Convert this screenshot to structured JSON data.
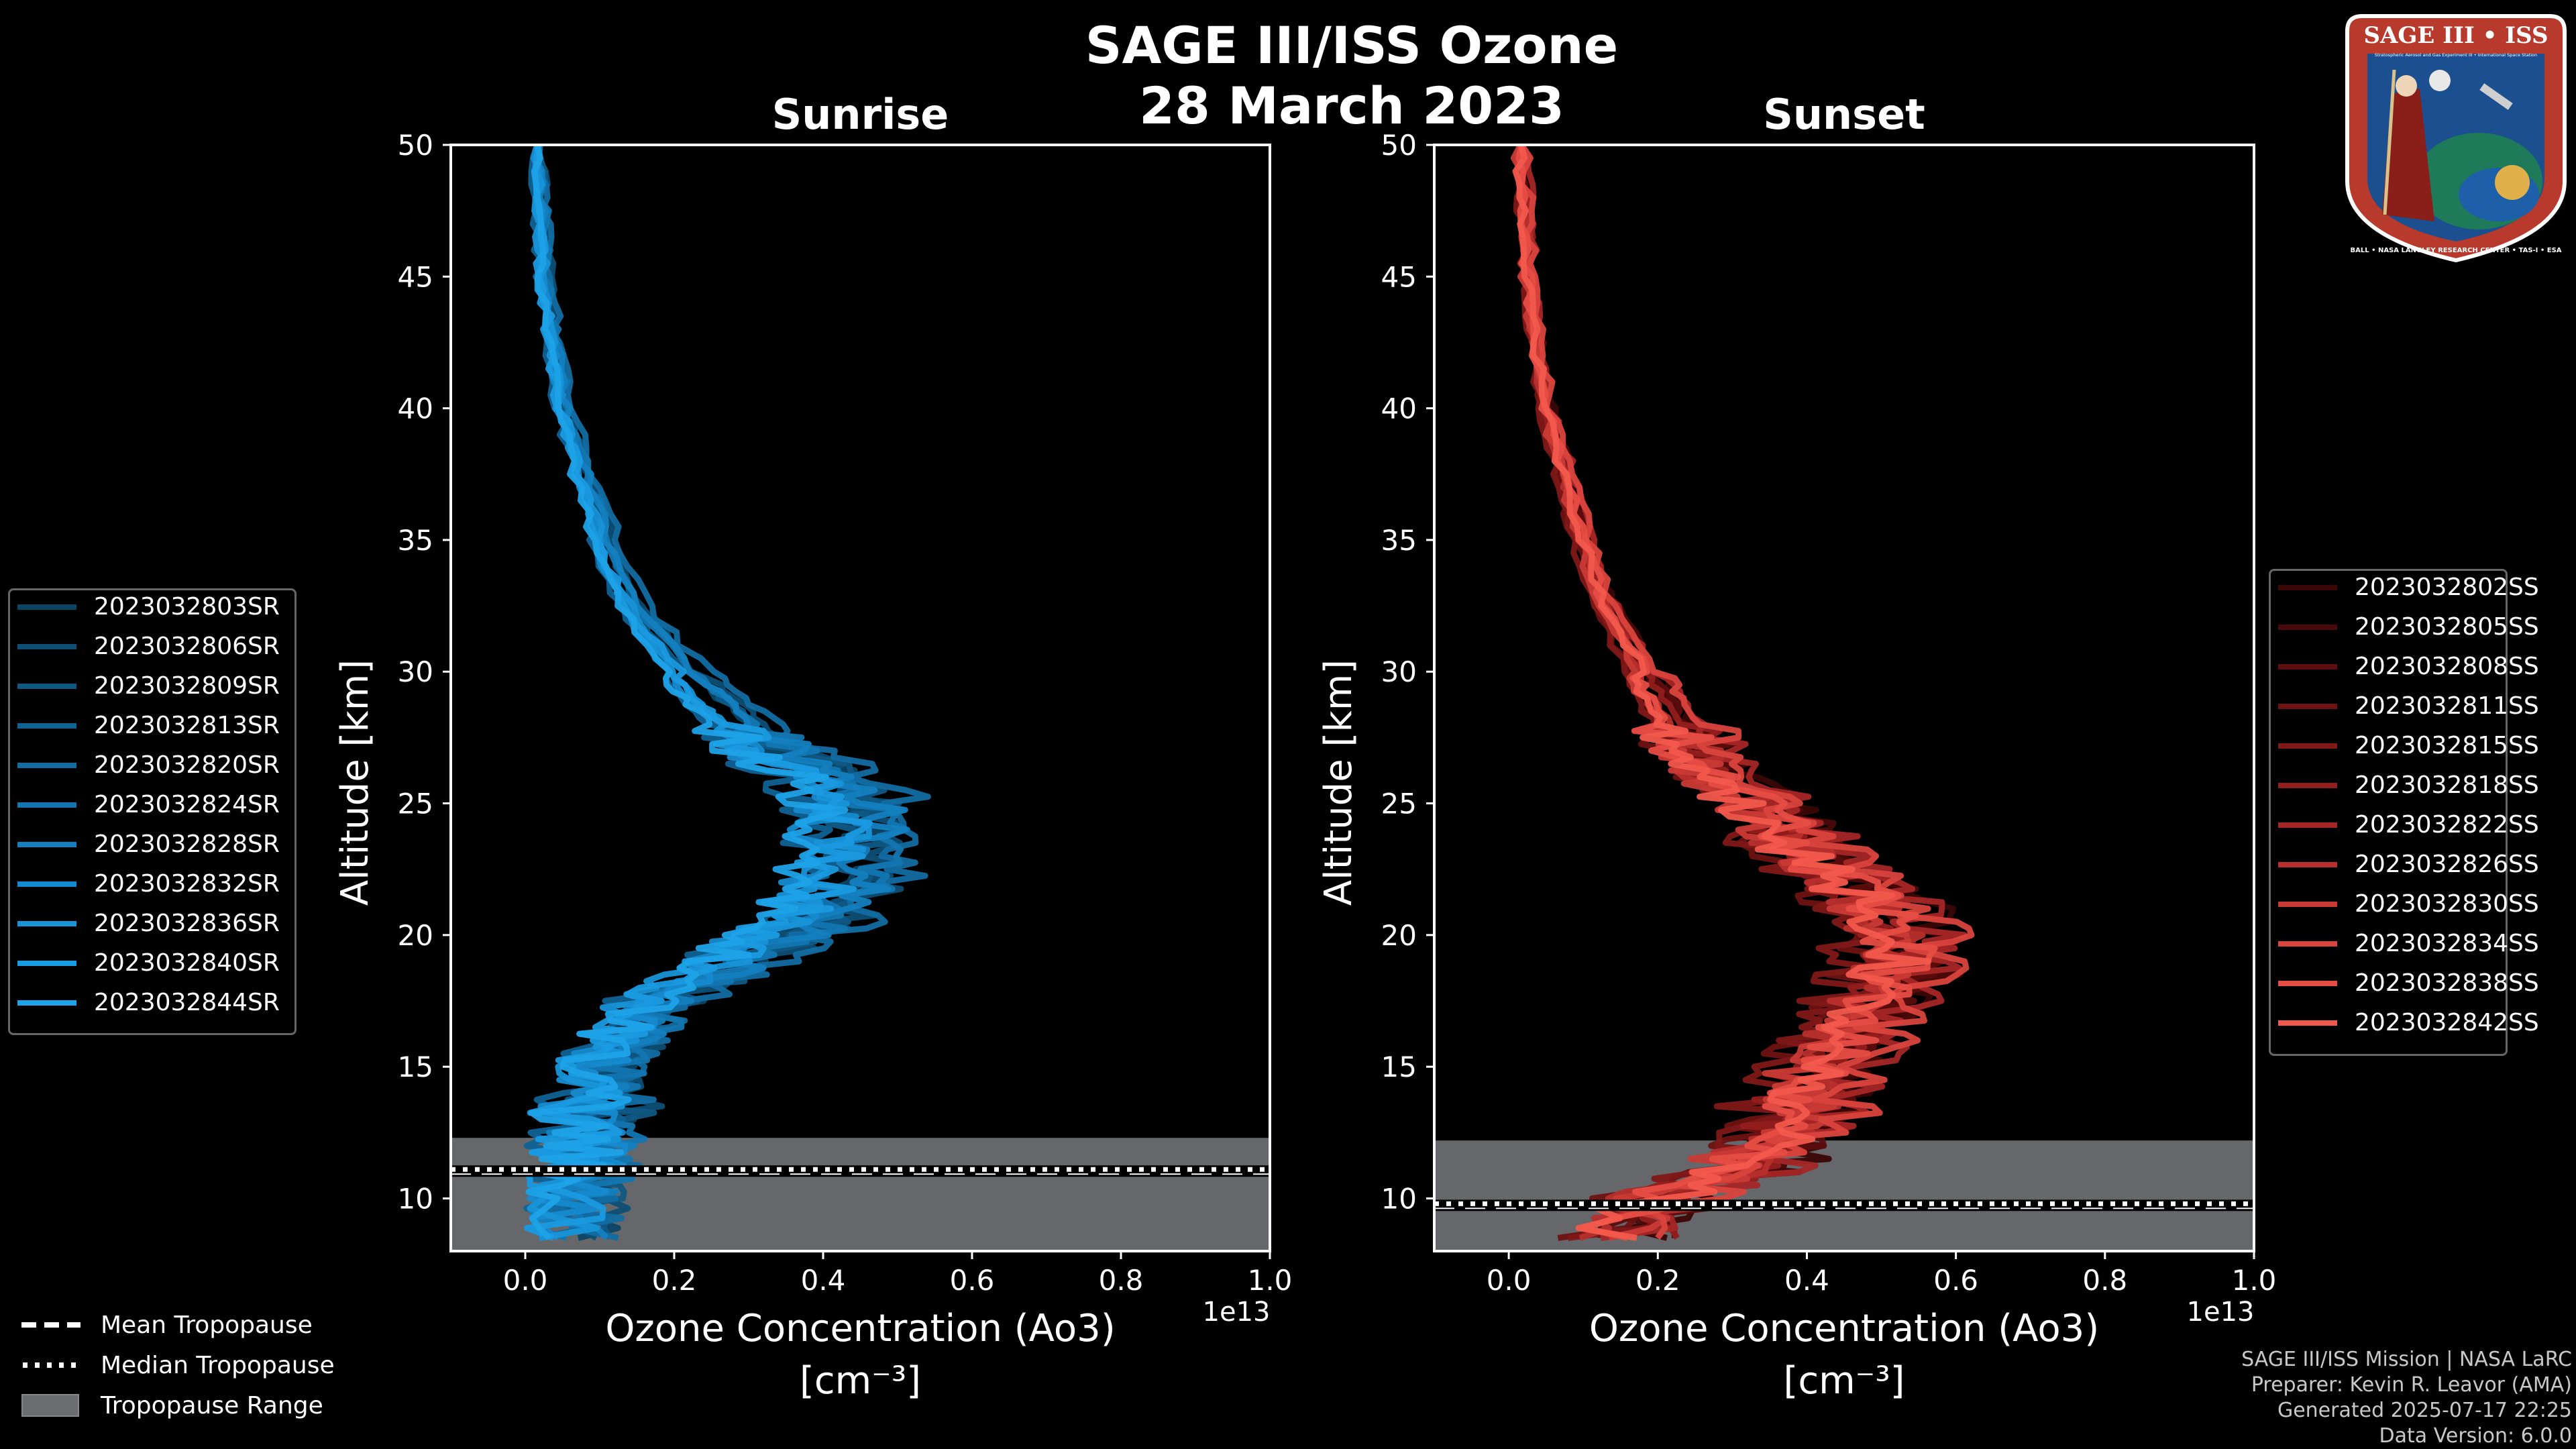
{
  "title": "SAGE III/ISS Ozone",
  "subtitle": "28 March 2023",
  "chart_data": [
    {
      "type": "line",
      "title": "Sunrise",
      "xlabel": "Ozone Concentration (Ao3)",
      "xlabel_units": "[cm⁻³]",
      "x_offset_label": "1e13",
      "ylabel": "Altitude [km]",
      "xlim": [
        -0.1,
        1.0
      ],
      "ylim": [
        8,
        50
      ],
      "xticks": [
        0.0,
        0.2,
        0.4,
        0.6,
        0.8,
        1.0
      ],
      "xtick_labels": [
        "0.0",
        "0.2",
        "0.4",
        "0.6",
        "0.8",
        "1.0"
      ],
      "yticks": [
        10,
        15,
        20,
        25,
        30,
        35,
        40,
        45,
        50
      ],
      "tropopause": {
        "mean": 11.0,
        "median": 11.1,
        "range": [
          8.0,
          12.3
        ]
      },
      "series_color": "#1f9be0",
      "series": [
        {
          "name": "2023032803SR",
          "color": "#0c4466"
        },
        {
          "name": "2023032806SR",
          "color": "#0d4e75"
        },
        {
          "name": "2023032809SR",
          "color": "#0f5884"
        },
        {
          "name": "2023032813SR",
          "color": "#106293"
        },
        {
          "name": "2023032820SR",
          "color": "#126ca2"
        },
        {
          "name": "2023032824SR",
          "color": "#1376b1"
        },
        {
          "name": "2023032828SR",
          "color": "#1480c0"
        },
        {
          "name": "2023032832SR",
          "color": "#168acf"
        },
        {
          "name": "2023032836SR",
          "color": "#1894d8"
        },
        {
          "name": "2023032840SR",
          "color": "#1a9ae0"
        },
        {
          "name": "2023032844SR",
          "color": "#1ea2e8"
        }
      ],
      "mean_profile": {
        "altitude": [
          8.5,
          10,
          11,
          12,
          13,
          14,
          15,
          16,
          17,
          18,
          19,
          20,
          21,
          22,
          23,
          24,
          25,
          26,
          27,
          28,
          29,
          30,
          31,
          32,
          33,
          34,
          35,
          36,
          37,
          38,
          39,
          40,
          41,
          42,
          43,
          44,
          45,
          46,
          47,
          48,
          49,
          50
        ],
        "ozone": [
          0.06,
          0.07,
          0.08,
          0.09,
          0.1,
          0.11,
          0.11,
          0.14,
          0.17,
          0.22,
          0.29,
          0.36,
          0.41,
          0.44,
          0.45,
          0.46,
          0.45,
          0.42,
          0.35,
          0.3,
          0.26,
          0.22,
          0.19,
          0.16,
          0.14,
          0.12,
          0.11,
          0.1,
          0.085,
          0.075,
          0.065,
          0.055,
          0.048,
          0.042,
          0.037,
          0.033,
          0.029,
          0.026,
          0.024,
          0.022,
          0.02,
          0.018
        ]
      }
    },
    {
      "type": "line",
      "title": "Sunset",
      "xlabel": "Ozone Concentration (Ao3)",
      "xlabel_units": "[cm⁻³]",
      "x_offset_label": "1e13",
      "ylabel": "Altitude [km]",
      "xlim": [
        -0.1,
        1.0
      ],
      "ylim": [
        8,
        50
      ],
      "xticks": [
        0.0,
        0.2,
        0.4,
        0.6,
        0.8,
        1.0
      ],
      "xtick_labels": [
        "0.0",
        "0.2",
        "0.4",
        "0.6",
        "0.8",
        "1.0"
      ],
      "yticks": [
        10,
        15,
        20,
        25,
        30,
        35,
        40,
        45,
        50
      ],
      "tropopause": {
        "mean": 9.7,
        "median": 9.8,
        "range": [
          8.0,
          12.2
        ]
      },
      "series_color": "#e8544a",
      "series": [
        {
          "name": "2023032802SS",
          "color": "#3a0606"
        },
        {
          "name": "2023032805SS",
          "color": "#4a0909"
        },
        {
          "name": "2023032808SS",
          "color": "#5c0d0d"
        },
        {
          "name": "2023032811SS",
          "color": "#6e1212"
        },
        {
          "name": "2023032815SS",
          "color": "#801818"
        },
        {
          "name": "2023032818SS",
          "color": "#931e1e"
        },
        {
          "name": "2023032822SS",
          "color": "#a52626"
        },
        {
          "name": "2023032826SS",
          "color": "#b72f2d"
        },
        {
          "name": "2023032830SS",
          "color": "#c93a35"
        },
        {
          "name": "2023032834SS",
          "color": "#d9443d"
        },
        {
          "name": "2023032838SS",
          "color": "#e64d44"
        },
        {
          "name": "2023032842SS",
          "color": "#f2584c"
        }
      ],
      "mean_profile": {
        "altitude": [
          8.5,
          10,
          11,
          12,
          13,
          14,
          15,
          16,
          17,
          18,
          19,
          20,
          21,
          22,
          23,
          24,
          25,
          26,
          27,
          28,
          29,
          30,
          31,
          32,
          33,
          34,
          35,
          36,
          37,
          38,
          39,
          40,
          41,
          42,
          43,
          44,
          45,
          46,
          47,
          48,
          49,
          50
        ],
        "ozone": [
          0.15,
          0.2,
          0.3,
          0.35,
          0.38,
          0.4,
          0.42,
          0.45,
          0.47,
          0.5,
          0.52,
          0.52,
          0.5,
          0.45,
          0.4,
          0.37,
          0.33,
          0.28,
          0.25,
          0.22,
          0.2,
          0.18,
          0.16,
          0.14,
          0.12,
          0.11,
          0.1,
          0.09,
          0.08,
          0.07,
          0.06,
          0.05,
          0.045,
          0.04,
          0.035,
          0.03,
          0.027,
          0.024,
          0.022,
          0.02,
          0.018,
          0.016
        ]
      }
    }
  ],
  "tropopause_legend": [
    {
      "label": "Mean Tropopause",
      "style": "dashed"
    },
    {
      "label": "Median Tropopause",
      "style": "dotted"
    },
    {
      "label": "Tropopause Range",
      "style": "patch"
    }
  ],
  "footer": {
    "line1": "SAGE III/ISS Mission | NASA LaRC",
    "line2": "Preparer: Kevin R. Leavor (AMA)",
    "line3": "Generated 2025-07-17 22:25",
    "line4": "Data Version: 6.0.0"
  },
  "logo": {
    "title": "SAGE III • ISS",
    "subtitle": "Stratospheric Aerosol and Gas Experiment III • International Space Station",
    "ring_text": "BALL • NASA LANGLEY RESEARCH CENTER • TAS-I • ESA",
    "colors": {
      "ring": "#b83a2c",
      "inner": "#1b4f8f",
      "gold": "#e0b04a"
    }
  },
  "colors": {
    "background": "#000000",
    "axes": "#ffffff",
    "tropopause_fill": "#6b6d70"
  }
}
